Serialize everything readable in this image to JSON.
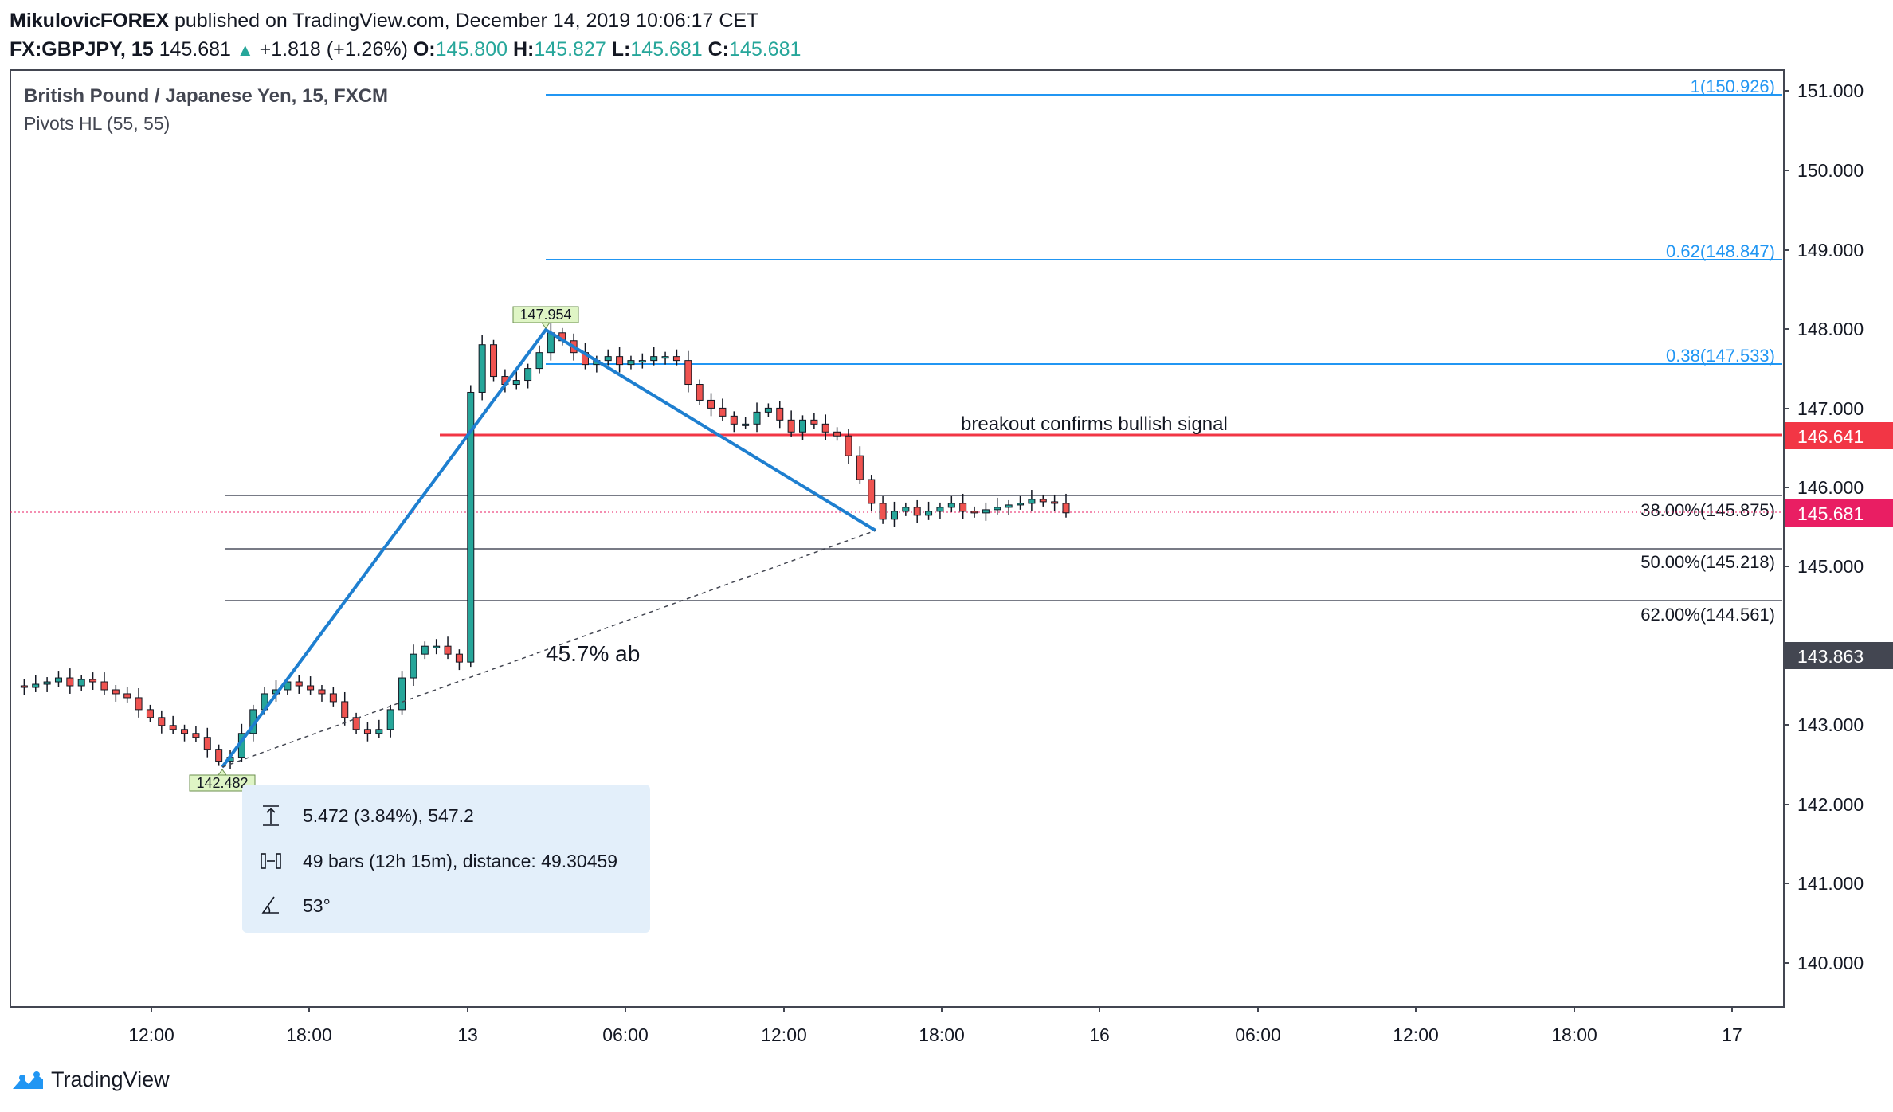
{
  "header": {
    "author": "MikulovicFOREX",
    "published_text": "published on TradingView.com, December 14, 2019 10:06:17 CET",
    "symbol": "FX:GBPJPY, 15",
    "last": "145.681",
    "change": "+1.818 (+1.26%)",
    "o_label": "O:",
    "o_val": "145.800",
    "h_label": "H:",
    "h_val": "145.827",
    "l_label": "L:",
    "l_val": "145.681",
    "c_label": "C:",
    "c_val": "145.681"
  },
  "legend": {
    "instrument": "British Pound / Japanese Yen, 15, FXCM",
    "indicator": "Pivots HL (55, 55)"
  },
  "price_axis": {
    "labels": [
      "151.000",
      "150.000",
      "149.000",
      "148.000",
      "147.000",
      "146.000",
      "145.000",
      "143.000",
      "142.000",
      "141.000",
      "140.000"
    ],
    "resistance_label": "146.641",
    "current_label": "145.681",
    "marker_label": "143.863"
  },
  "time_axis": {
    "labels": [
      "12:00",
      "18:00",
      "13",
      "06:00",
      "12:00",
      "18:00",
      "16",
      "06:00",
      "12:00",
      "18:00",
      "17"
    ]
  },
  "annotations": {
    "fib_ext_1": "1(150.926)",
    "fib_ext_062": "0.62(148.847)",
    "fib_ext_038": "0.38(147.533)",
    "breakout_text": "breakout confirms bullish signal",
    "retr_38": "38.00%(145.875)",
    "retr_50": "50.00%(145.218)",
    "retr_62": "62.00%(144.561)",
    "ab_ratio": "45.7% ab",
    "high_pivot": "147.954",
    "low_pivot": "142.482"
  },
  "measure_box": {
    "range": "5.472 (3.84%), 547.2",
    "bars": "49 bars (12h 15m), distance: 49.30459",
    "angle": "53°"
  },
  "branding": {
    "name": "TradingView"
  },
  "colors": {
    "up": "#26a69a",
    "down": "#ef5350",
    "fib": "#2196f3",
    "resistance": "#f23645",
    "current": "#e91e63",
    "marker": "#434651"
  },
  "chart_data": {
    "type": "candlestick",
    "title": "British Pound / Japanese Yen, 15, FXCM",
    "xlabel": "",
    "ylabel": "",
    "ylim": [
      139.4,
      151.3
    ],
    "x_ticks": [
      "12:00",
      "18:00",
      "13",
      "06:00",
      "12:00",
      "18:00",
      "16",
      "06:00",
      "12:00",
      "18:00",
      "17"
    ],
    "swing": {
      "A": 142.48,
      "B": 147.954,
      "C": 145.55
    },
    "levels": {
      "fib_ext": [
        150.926,
        148.847,
        147.533
      ],
      "retracements": [
        145.875,
        145.218,
        144.561
      ],
      "resistance": 146.641,
      "current": 145.681
    },
    "price_path": [
      143.5,
      143.48,
      143.52,
      143.55,
      143.6,
      143.5,
      143.58,
      143.55,
      143.45,
      143.4,
      143.35,
      143.2,
      143.1,
      143.0,
      142.95,
      142.9,
      142.85,
      142.7,
      142.55,
      142.6,
      142.9,
      143.2,
      143.4,
      143.45,
      143.55,
      143.5,
      143.45,
      143.4,
      143.3,
      143.1,
      142.95,
      142.9,
      142.95,
      143.2,
      143.6,
      143.9,
      144.0,
      144.0,
      143.9,
      143.8,
      147.2,
      147.8,
      147.4,
      147.3,
      147.35,
      147.5,
      147.7,
      147.95,
      147.85,
      147.7,
      147.55,
      147.6,
      147.65,
      147.55,
      147.6,
      147.6,
      147.65,
      147.65,
      147.6,
      147.3,
      147.1,
      147.0,
      146.9,
      146.8,
      146.8,
      146.95,
      147.0,
      146.85,
      146.7,
      146.85,
      146.8,
      146.7,
      146.65,
      146.4,
      146.1,
      145.8,
      145.6,
      145.7,
      145.75,
      145.65,
      145.7,
      145.75,
      145.8,
      145.7,
      145.68,
      145.72,
      145.75,
      145.78,
      145.8,
      145.85,
      145.82,
      145.8,
      145.681
    ]
  }
}
